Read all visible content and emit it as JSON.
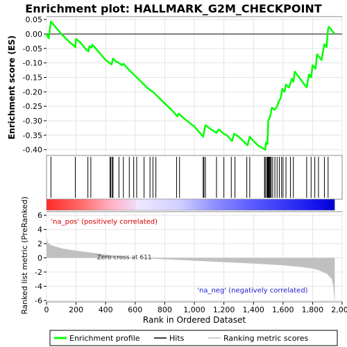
{
  "chart_data": {
    "type": "line",
    "title": "Enrichment plot: HALLMARK_G2M_CHECKPOINT",
    "top_panel": {
      "ylabel": "Enrichment score (ES)",
      "ylim": [
        -0.42,
        0.06
      ],
      "yticks": [
        "0.05",
        "0.00",
        "-0.05",
        "-0.10",
        "-0.15",
        "-0.20",
        "-0.25",
        "-0.30",
        "-0.35",
        "-0.40"
      ],
      "grid": true,
      "series": [
        {
          "name": "Enrichment profile",
          "color": "#00ff00",
          "points": [
            [
              0,
              0.0
            ],
            [
              15,
              -0.015
            ],
            [
              30,
              0.043
            ],
            [
              60,
              0.025
            ],
            [
              100,
              0.0
            ],
            [
              150,
              -0.025
            ],
            [
              195,
              -0.045
            ],
            [
              200,
              -0.017
            ],
            [
              230,
              -0.03
            ],
            [
              270,
              -0.055
            ],
            [
              285,
              -0.06
            ],
            [
              290,
              -0.042
            ],
            [
              305,
              -0.047
            ],
            [
              310,
              -0.037
            ],
            [
              350,
              -0.06
            ],
            [
              400,
              -0.09
            ],
            [
              440,
              -0.105
            ],
            [
              450,
              -0.085
            ],
            [
              470,
              -0.095
            ],
            [
              490,
              -0.1
            ],
            [
              510,
              -0.108
            ],
            [
              520,
              -0.103
            ],
            [
              560,
              -0.125
            ],
            [
              600,
              -0.145
            ],
            [
              650,
              -0.17
            ],
            [
              690,
              -0.19
            ],
            [
              720,
              -0.2
            ],
            [
              740,
              -0.21
            ],
            [
              780,
              -0.23
            ],
            [
              820,
              -0.25
            ],
            [
              860,
              -0.27
            ],
            [
              885,
              -0.285
            ],
            [
              895,
              -0.275
            ],
            [
              910,
              -0.283
            ],
            [
              950,
              -0.3
            ],
            [
              1000,
              -0.32
            ],
            [
              1060,
              -0.355
            ],
            [
              1075,
              -0.315
            ],
            [
              1100,
              -0.325
            ],
            [
              1150,
              -0.342
            ],
            [
              1165,
              -0.33
            ],
            [
              1200,
              -0.345
            ],
            [
              1220,
              -0.35
            ],
            [
              1255,
              -0.37
            ],
            [
              1270,
              -0.345
            ],
            [
              1300,
              -0.355
            ],
            [
              1340,
              -0.375
            ],
            [
              1360,
              -0.385
            ],
            [
              1375,
              -0.355
            ],
            [
              1400,
              -0.37
            ],
            [
              1430,
              -0.385
            ],
            [
              1480,
              -0.4
            ],
            [
              1485,
              -0.375
            ],
            [
              1495,
              -0.38
            ],
            [
              1500,
              -0.3
            ],
            [
              1510,
              -0.29
            ],
            [
              1515,
              -0.28
            ],
            [
              1520,
              -0.265
            ],
            [
              1525,
              -0.255
            ],
            [
              1545,
              -0.262
            ],
            [
              1560,
              -0.25
            ],
            [
              1570,
              -0.235
            ],
            [
              1585,
              -0.22
            ],
            [
              1595,
              -0.19
            ],
            [
              1610,
              -0.2
            ],
            [
              1620,
              -0.175
            ],
            [
              1640,
              -0.185
            ],
            [
              1660,
              -0.155
            ],
            [
              1670,
              -0.165
            ],
            [
              1680,
              -0.13
            ],
            [
              1760,
              -0.185
            ],
            [
              1775,
              -0.14
            ],
            [
              1790,
              -0.15
            ],
            [
              1800,
              -0.108
            ],
            [
              1820,
              -0.12
            ],
            [
              1830,
              -0.07
            ],
            [
              1860,
              -0.09
            ],
            [
              1880,
              -0.035
            ],
            [
              1895,
              -0.045
            ],
            [
              1905,
              0.02
            ],
            [
              1910,
              0.025
            ],
            [
              1950,
              0.0
            ]
          ]
        }
      ]
    },
    "hits_panel": {
      "label": "Hits",
      "hit_ranks": [
        30,
        195,
        280,
        300,
        430,
        435,
        445,
        450,
        490,
        520,
        560,
        590,
        610,
        660,
        700,
        720,
        740,
        880,
        900,
        1060,
        1065,
        1075,
        1150,
        1200,
        1250,
        1275,
        1355,
        1375,
        1475,
        1480,
        1490,
        1495,
        1500,
        1505,
        1510,
        1515,
        1520,
        1530,
        1545,
        1560,
        1575,
        1590,
        1600,
        1620,
        1650,
        1670,
        1760,
        1790,
        1815,
        1840,
        1880,
        1905
      ],
      "heatmap_stops": [
        {
          "rank": 0,
          "color": "#ff2a2a"
        },
        {
          "rank": 230,
          "color": "#ff6a6a"
        },
        {
          "rank": 450,
          "color": "#ffb6c8"
        },
        {
          "rank": 600,
          "color": "#f2d6f6"
        },
        {
          "rank": 611,
          "color": "#f0e8ff"
        },
        {
          "rank": 900,
          "color": "#d0d0ff"
        },
        {
          "rank": 1150,
          "color": "#8c8cff"
        },
        {
          "rank": 1400,
          "color": "#5a5aff"
        },
        {
          "rank": 1820,
          "color": "#1515ee"
        },
        {
          "rank": 1950,
          "color": "#0000cc"
        }
      ]
    },
    "bottom_panel": {
      "ylabel": "Ranked list metric (PreRanked)",
      "xlabel": "Rank in Ordered Dataset",
      "ylim": [
        -6.2,
        6.5
      ],
      "yticks": [
        "6",
        "4",
        "2",
        "0",
        "-2",
        "-4",
        "-6"
      ],
      "xlim": [
        0,
        2000
      ],
      "xticks": [
        "0",
        "200",
        "400",
        "600",
        "800",
        "1,000",
        "1,200",
        "1,400",
        "1,600",
        "1,800",
        "2,000"
      ],
      "metric_points": [
        [
          0,
          3.2
        ],
        [
          3,
          2.5
        ],
        [
          10,
          2.1
        ],
        [
          30,
          1.8
        ],
        [
          100,
          1.35
        ],
        [
          200,
          1.0
        ],
        [
          300,
          0.75
        ],
        [
          400,
          0.45
        ],
        [
          500,
          0.22
        ],
        [
          611,
          0.0
        ],
        [
          800,
          -0.2
        ],
        [
          1000,
          -0.4
        ],
        [
          1200,
          -0.6
        ],
        [
          1400,
          -0.8
        ],
        [
          1600,
          -1.05
        ],
        [
          1700,
          -1.25
        ],
        [
          1800,
          -1.5
        ],
        [
          1850,
          -1.8
        ],
        [
          1900,
          -2.3
        ],
        [
          1930,
          -3.0
        ],
        [
          1940,
          -4.0
        ],
        [
          1947,
          -5.9
        ],
        [
          1950,
          -5.9
        ]
      ],
      "fill_color": "#c0c0c0",
      "annotations": {
        "zero_cross": "Zero cross at 611",
        "pos_label": "'na_pos' (positively correlated)",
        "neg_label": "'na_neg' (negatively correlated)",
        "pos_color": "#d40000",
        "neg_color": "#2020cc"
      }
    },
    "legend": {
      "position": "bottom",
      "items": [
        {
          "label": "Enrichment profile",
          "color": "#00ff00"
        },
        {
          "label": "Hits",
          "color": "#000000"
        },
        {
          "label": "Ranking metric scores",
          "color": "#c0c0c0"
        }
      ]
    }
  }
}
